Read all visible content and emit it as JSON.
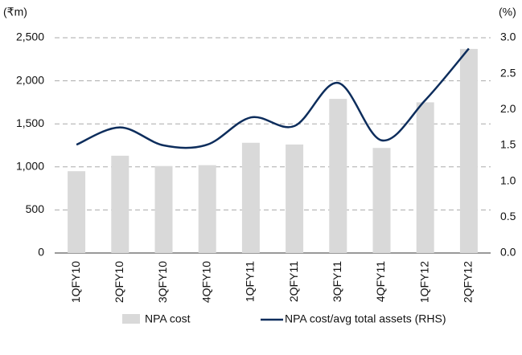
{
  "chart_data": {
    "type": "bar-line",
    "y_axis_label": "(₹m)",
    "y2_axis_label": "(%)",
    "categories": [
      "1QFY10",
      "2QFY10",
      "3QFY10",
      "4QFY10",
      "1QFY11",
      "2QFY11",
      "3QFY11",
      "4QFY11",
      "1QFY12",
      "2QFY12"
    ],
    "series": [
      {
        "name": "NPA cost",
        "type": "bar",
        "color": "#d9d9d9",
        "values": [
          950,
          1130,
          1010,
          1020,
          1280,
          1260,
          1790,
          1220,
          1750,
          2370
        ]
      },
      {
        "name": "NPA cost/avg total assets (RHS)",
        "type": "line",
        "axis": "y2",
        "color": "#0d2d5c",
        "values": [
          1.51,
          1.75,
          1.5,
          1.51,
          1.89,
          1.77,
          2.37,
          1.57,
          2.13,
          2.85
        ]
      }
    ],
    "ylim": [
      0,
      2500
    ],
    "yticks": [
      0,
      {
        "value": 500,
        "label": "500"
      },
      {
        "value": 1000,
        "label": "1,000"
      },
      {
        "value": 1500,
        "label": "1,500"
      },
      {
        "value": 2000,
        "label": "2,000"
      },
      {
        "value": 2500,
        "label": "2,500"
      }
    ],
    "y2lim": [
      0,
      3
    ],
    "y2ticks": [
      {
        "value": 0,
        "label": "0.0"
      },
      {
        "value": 0.5,
        "label": "0.5"
      },
      {
        "value": 1,
        "label": "1.0"
      },
      {
        "value": 1.5,
        "label": "1.5"
      },
      {
        "value": 2,
        "label": "2.0"
      },
      {
        "value": 2.5,
        "label": "2.5"
      },
      {
        "value": 3,
        "label": "3.0"
      }
    ],
    "grid": true,
    "legend": "bottom"
  }
}
